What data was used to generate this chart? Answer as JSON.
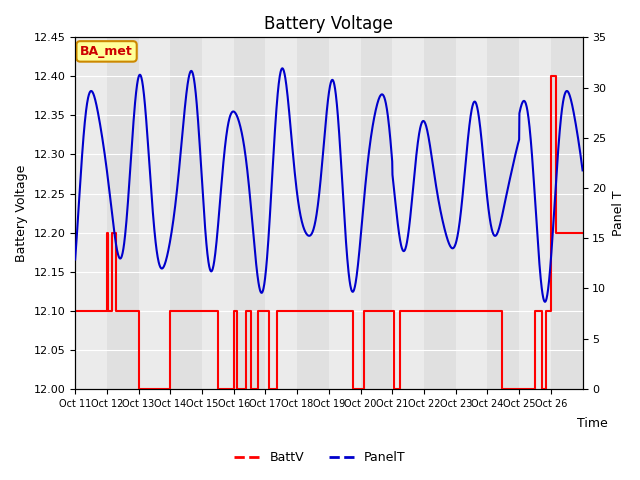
{
  "title": "Battery Voltage",
  "xlabel": "Time",
  "ylabel_left": "Battery Voltage",
  "ylabel_right": "Panel T",
  "ylim_left": [
    12.0,
    12.45
  ],
  "ylim_right": [
    0,
    35
  ],
  "background_color": "#ffffff",
  "plot_bg_color": "#e0e0e0",
  "annotation_text": "BA_met",
  "annotation_bg": "#ffff99",
  "annotation_border": "#cc8800",
  "x_tick_labels": [
    "Oct 11",
    "Oct 12",
    "Oct 13",
    "Oct 14",
    "Oct 15",
    "Oct 16",
    "Oct 17",
    "Oct 18",
    "Oct 19",
    "Oct 20",
    "Oct 21",
    "Oct 22",
    "Oct 23",
    "Oct 24",
    "Oct 25",
    "Oct 26"
  ],
  "batt_color": "#ff0000",
  "panel_color": "#0000cc",
  "yticks_left": [
    12.0,
    12.05,
    12.1,
    12.15,
    12.2,
    12.25,
    12.3,
    12.35,
    12.4,
    12.45
  ],
  "yticks_right": [
    0,
    5,
    10,
    15,
    20,
    25,
    30,
    35
  ],
  "batt_x": [
    0,
    1.0,
    1.0,
    1.05,
    1.05,
    1.15,
    1.15,
    1.3,
    1.3,
    2.0,
    2.0,
    3.0,
    3.0,
    4.5,
    4.5,
    5.0,
    5.0,
    5.1,
    5.1,
    5.4,
    5.4,
    5.55,
    5.55,
    5.75,
    5.75,
    6.1,
    6.1,
    6.35,
    6.35,
    8.75,
    8.75,
    9.1,
    9.1,
    10.05,
    10.05,
    10.25,
    10.25,
    13.45,
    13.45,
    14.5,
    14.5,
    14.72,
    14.72,
    14.85,
    14.85,
    15.0,
    15.0,
    15.15,
    15.15,
    16.0
  ],
  "batt_y": [
    12.1,
    12.1,
    12.2,
    12.2,
    12.1,
    12.1,
    12.2,
    12.2,
    12.1,
    12.1,
    12.0,
    12.0,
    12.1,
    12.1,
    12.0,
    12.0,
    12.1,
    12.1,
    12.0,
    12.0,
    12.1,
    12.1,
    12.0,
    12.0,
    12.1,
    12.1,
    12.0,
    12.0,
    12.1,
    12.1,
    12.0,
    12.0,
    12.1,
    12.1,
    12.0,
    12.0,
    12.1,
    12.1,
    12.0,
    12.0,
    12.1,
    12.1,
    12.0,
    12.0,
    12.1,
    12.1,
    12.4,
    12.4,
    12.2,
    12.2
  ]
}
